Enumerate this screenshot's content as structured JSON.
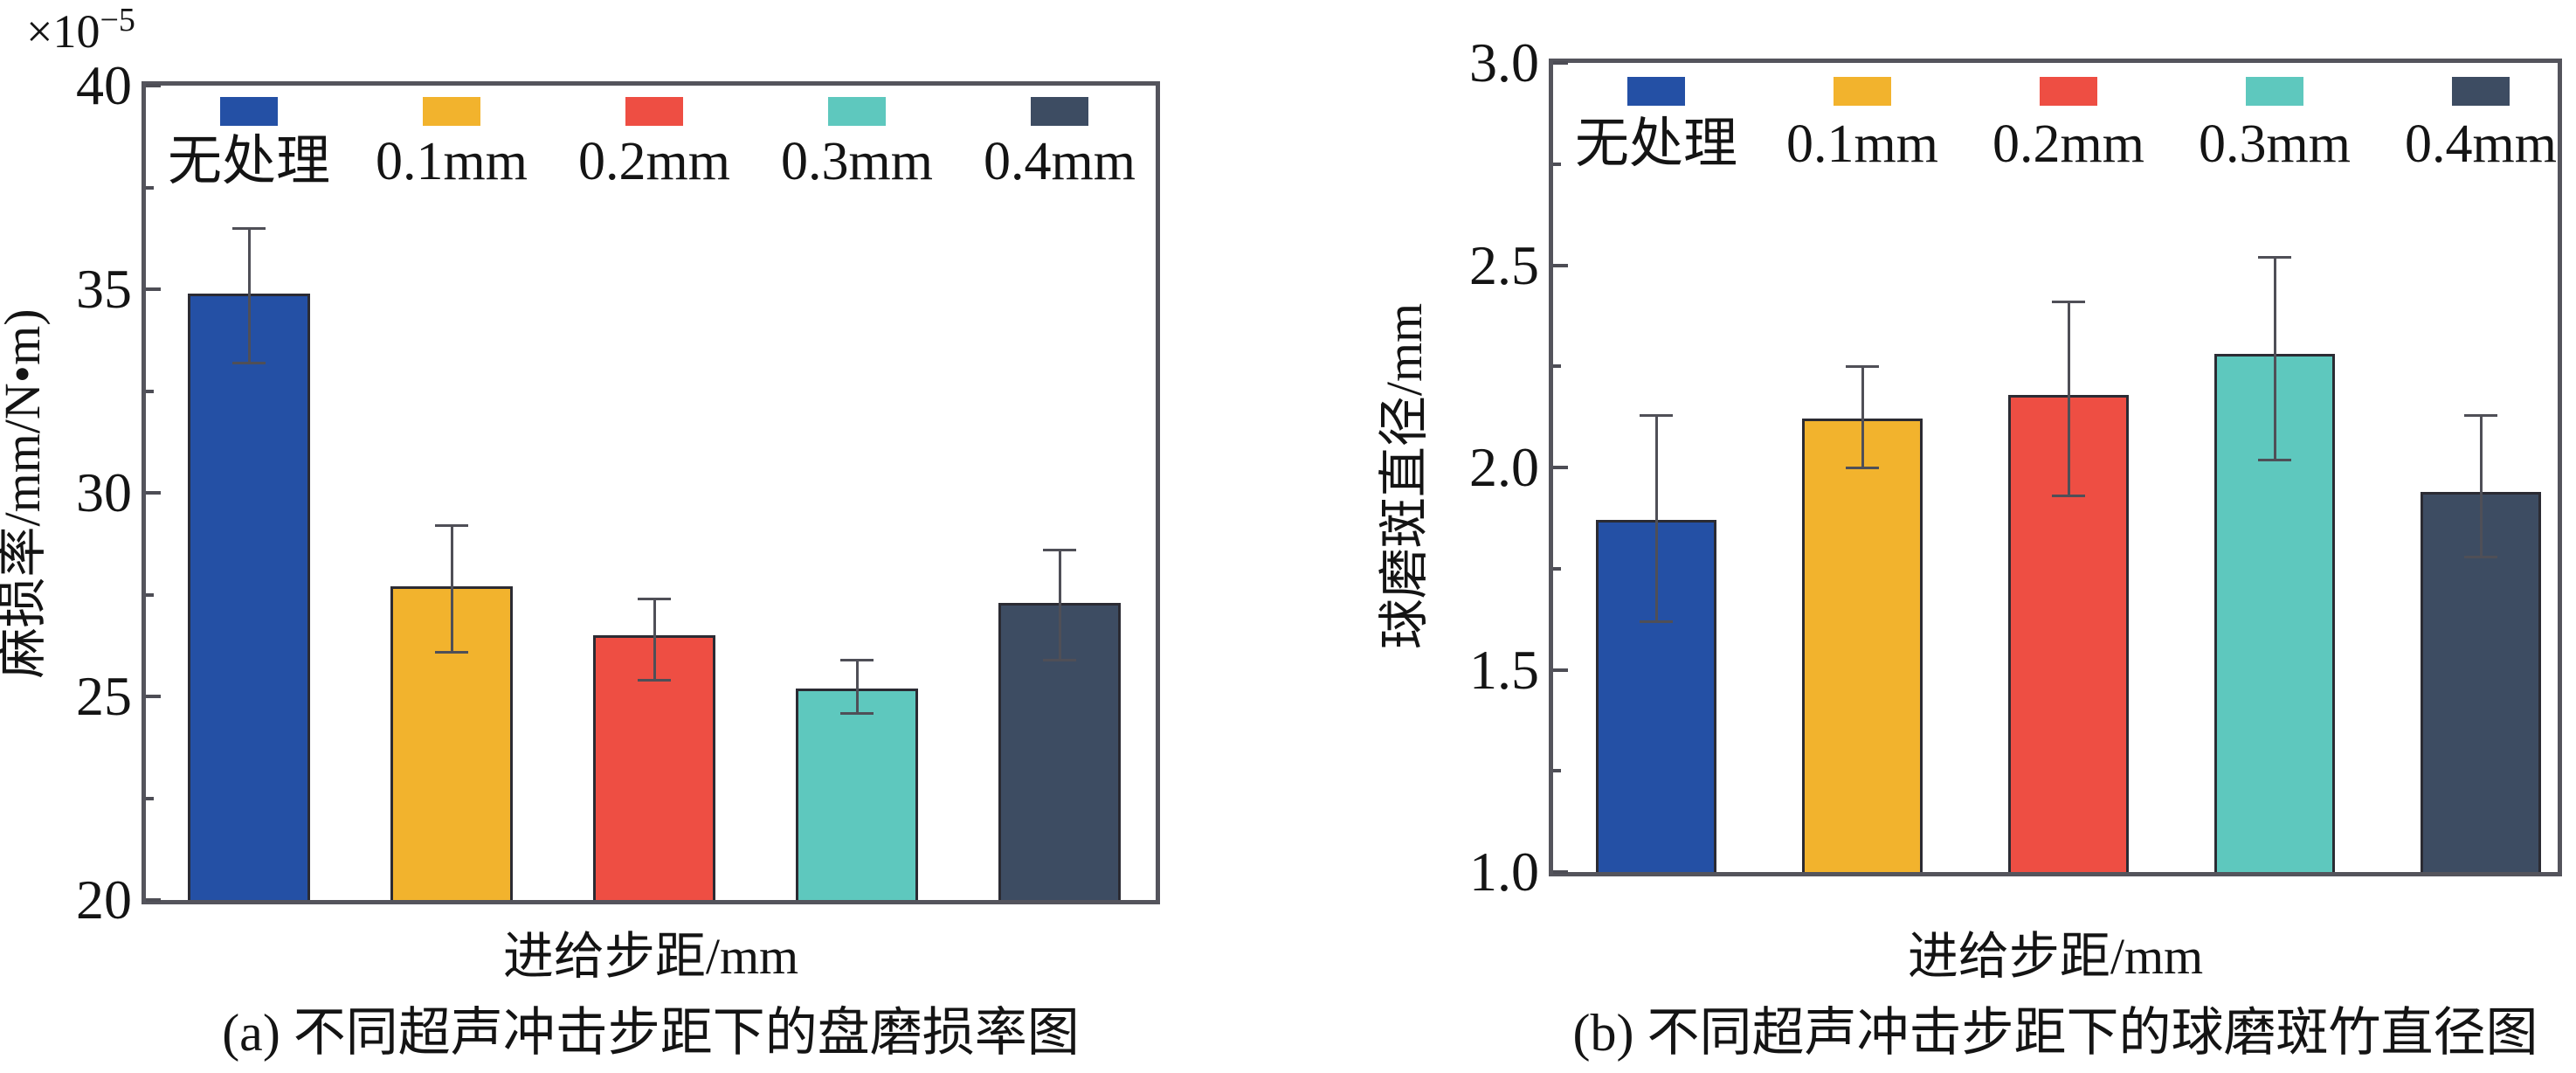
{
  "figure_description": "Two grouped bar charts comparing ultrasonic impact step distances",
  "chart_data": [
    {
      "id": "a",
      "type": "bar",
      "caption": "(a) 不同超声冲击步距下的盘磨损率图",
      "xlabel": "进给步距/mm",
      "ylabel": "麻损率/mm/N•m)",
      "y_multiplier": {
        "base": "×10",
        "exponent": "−5"
      },
      "categories": [
        "无处理",
        "0.1mm",
        "0.2mm",
        "0.3mm",
        "0.4mm"
      ],
      "values": [
        34.9,
        27.7,
        26.5,
        25.2,
        27.3
      ],
      "error_low": [
        33.2,
        26.1,
        25.4,
        24.6,
        25.9
      ],
      "error_high": [
        36.5,
        29.2,
        27.4,
        25.9,
        28.6
      ],
      "bar_colors": [
        "#2450a5",
        "#f2b32d",
        "#ee4e43",
        "#5ec8be",
        "#3d4c62"
      ],
      "ylim": [
        20,
        40
      ],
      "yticks": [
        {
          "value": 40,
          "label": "40"
        },
        {
          "value": 35,
          "label": "35"
        },
        {
          "value": 30,
          "label": "30"
        },
        {
          "value": 25,
          "label": "25"
        },
        {
          "value": 20,
          "label": "20"
        }
      ],
      "minor_ticks": [
        37.5,
        32.5,
        27.5,
        22.5
      ],
      "legend_position": "top-inside",
      "grid": false
    },
    {
      "id": "b",
      "type": "bar",
      "caption": "(b) 不同超声冲击步距下的球磨斑竹直径图",
      "xlabel": "进给步距/mm",
      "ylabel": "球磨斑直径/mm",
      "categories": [
        "无处理",
        "0.1mm",
        "0.2mm",
        "0.3mm",
        "0.4mm"
      ],
      "values": [
        1.87,
        2.12,
        2.18,
        2.28,
        1.94
      ],
      "error_low": [
        1.62,
        2.0,
        1.93,
        2.02,
        1.78
      ],
      "error_high": [
        2.13,
        2.25,
        2.41,
        2.52,
        2.13
      ],
      "bar_colors": [
        "#2450a5",
        "#f2b32d",
        "#ee4e43",
        "#5ec8be",
        "#3d4c62"
      ],
      "ylim": [
        1.0,
        3.0
      ],
      "yticks": [
        {
          "value": 3.0,
          "label": "3.0"
        },
        {
          "value": 2.5,
          "label": "2.5"
        },
        {
          "value": 2.0,
          "label": "2.0"
        },
        {
          "value": 1.5,
          "label": "1.5"
        },
        {
          "value": 1.0,
          "label": "1.0"
        }
      ],
      "minor_ticks": [
        2.75,
        2.25,
        1.75,
        1.25
      ],
      "legend_position": "top-inside",
      "grid": false
    }
  ],
  "colors": {
    "frame": "#54545c",
    "error_bar": "#4f4f57",
    "text": "#141414",
    "background": "#ffffff"
  }
}
